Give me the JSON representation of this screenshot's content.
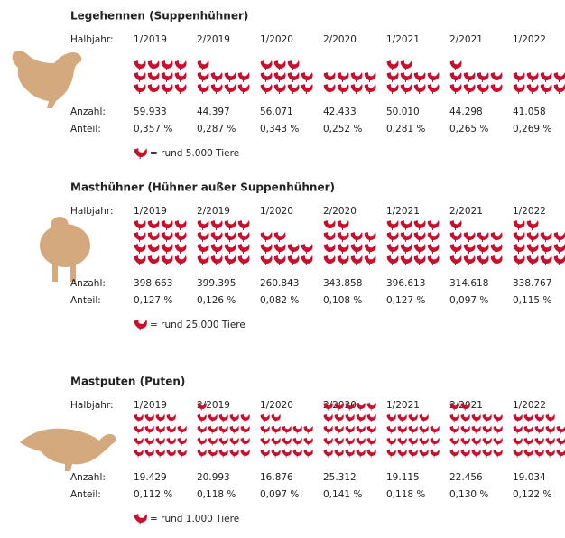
{
  "sections": [
    {
      "title": "Legehennen (Suppenhühner)",
      "header_label": "Halbjahr:",
      "periods": [
        "1/2019",
        "2/2019",
        "1/2020",
        "2/2020",
        "1/2021",
        "2/2021",
        "1/2022"
      ],
      "count_label": "Anzahl:",
      "counts": [
        "59.933",
        "44.397",
        "56.071",
        "42.433",
        "50.010",
        "44.298",
        "41.058"
      ],
      "share_label": "Anteil:",
      "shares": [
        "0,357 %",
        "0,287 %",
        "0,343 %",
        "0,252 %",
        "0,281 %",
        "0,265 %",
        "0,269 %"
      ],
      "legend": "= rund 5.000 Tiere"
    },
    {
      "title": "Masthühner (Hühner außer Suppenhühner)",
      "header_label": "Halbjahr:",
      "periods": [
        "1/2019",
        "2/2019",
        "1/2020",
        "2/2020",
        "1/2021",
        "2/2021",
        "1/2022"
      ],
      "count_label": "Anzahl:",
      "counts": [
        "398.663",
        "399.395",
        "260.843",
        "343.858",
        "396.613",
        "314.618",
        "338.767"
      ],
      "share_label": "Anteil:",
      "shares": [
        "0,127 %",
        "0,126 %",
        "0,082 %",
        "0,108 %",
        "0,127 %",
        "0,097 %",
        "0,115 %"
      ],
      "legend": "= rund 25.000 Tiere"
    },
    {
      "title": "Mastputen (Puten)",
      "header_label": "Halbjahr:",
      "periods": [
        "1/2019",
        "2/2019",
        "1/2020",
        "2/2020",
        "1/2021",
        "2/2021",
        "1/2022"
      ],
      "count_label": "Anzahl:",
      "counts": [
        "19.429",
        "20.993",
        "16.876",
        "25.312",
        "19.115",
        "22.456",
        "19.034"
      ],
      "share_label": "Anteil:",
      "shares": [
        "0,112 %",
        "0,118 %",
        "0,097 %",
        "0,141 %",
        "0,118 %",
        "0,130 %",
        "0,122 %"
      ],
      "legend": "= rund 1.000 Tiere"
    }
  ]
}
